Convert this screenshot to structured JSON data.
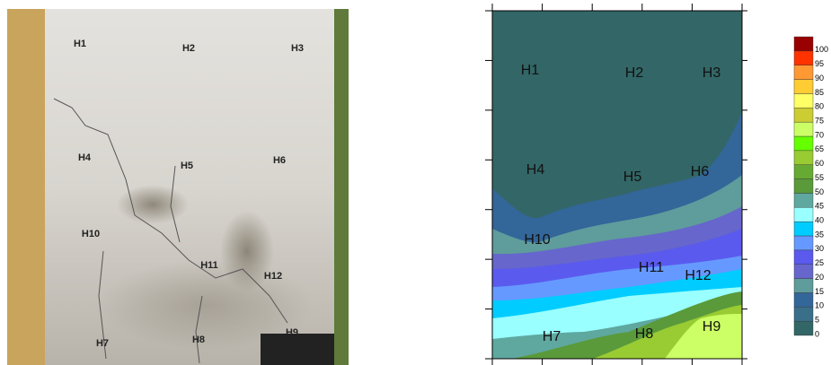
{
  "photo": {
    "labels": [
      "H1",
      "H2",
      "H3",
      "H4",
      "H5",
      "H6",
      "H7",
      "H8",
      "H9",
      "H10",
      "H11",
      "H12"
    ]
  },
  "contour": {
    "labels": [
      "H1",
      "H2",
      "H3",
      "H4",
      "H5",
      "H6",
      "H7",
      "H8",
      "H9",
      "H10",
      "H11",
      "H12"
    ]
  },
  "colorbar": {
    "ticks": [
      0,
      5,
      10,
      15,
      20,
      25,
      30,
      35,
      40,
      45,
      50,
      55,
      60,
      65,
      70,
      75,
      80,
      85,
      90,
      95,
      100
    ]
  }
}
